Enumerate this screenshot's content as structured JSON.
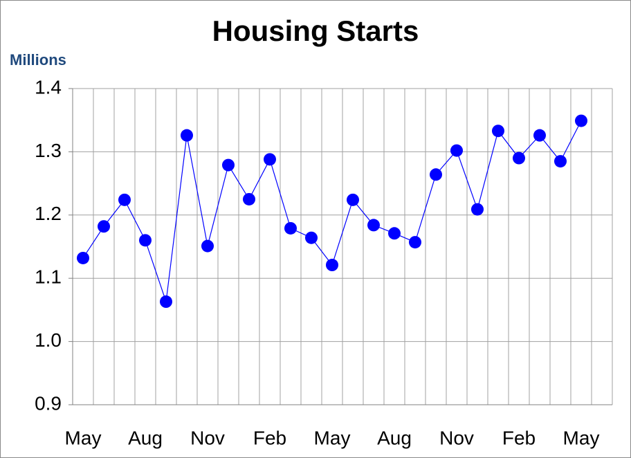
{
  "chart_data": {
    "type": "line",
    "title": "Housing Starts",
    "y_label": "Millions",
    "categories": [
      "May",
      null,
      null,
      "Aug",
      null,
      null,
      "Nov",
      null,
      null,
      "Feb",
      null,
      null,
      "May",
      null,
      null,
      "Aug",
      null,
      null,
      "Nov",
      null,
      null,
      "Feb",
      null,
      null,
      "May",
      null
    ],
    "series": [
      {
        "color": "#0000ff",
        "values": [
          1.132,
          1.182,
          1.224,
          1.16,
          1.063,
          1.326,
          1.151,
          1.279,
          1.225,
          1.288,
          1.179,
          1.164,
          1.121,
          1.224,
          1.184,
          1.171,
          1.157,
          1.264,
          1.302,
          1.209,
          1.333,
          1.29,
          1.326,
          1.285,
          1.349,
          null
        ]
      }
    ],
    "ylim": [
      0.9,
      1.4
    ],
    "yticks": [
      0.9,
      {
        "value": 1.0,
        "label": "1.0"
      },
      1.1,
      1.2,
      1.3,
      1.4
    ],
    "grid": true
  }
}
